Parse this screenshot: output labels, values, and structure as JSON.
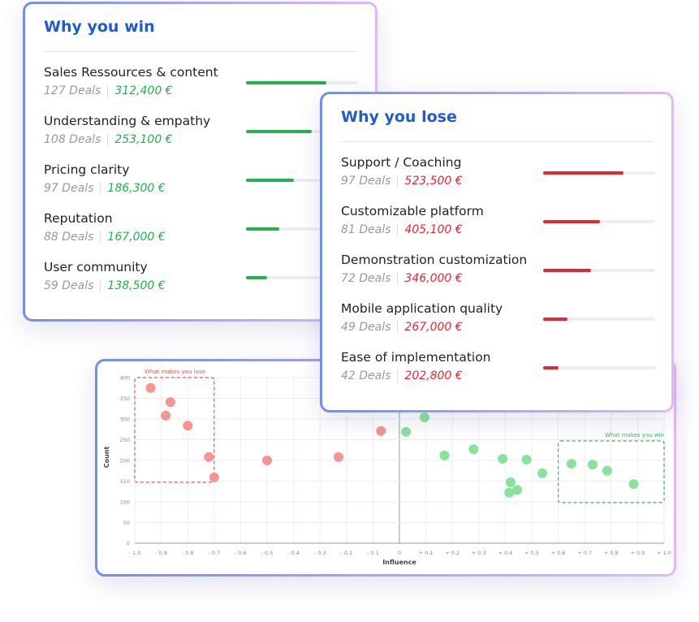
{
  "cards": [
    {
      "title": "Why you win",
      "color": "#22b14c",
      "items": [
        {
          "label": "Sales Ressources & content",
          "deals": "127 Deals",
          "amount": "312,400 €",
          "progress": 72
        },
        {
          "label": "Understanding & empathy",
          "deals": "108 Deals",
          "amount": "253,100 €",
          "progress": 59
        },
        {
          "label": "Pricing clarity",
          "deals": "97 Deals",
          "amount": "186,300 €",
          "progress": 43
        },
        {
          "label": "Reputation",
          "deals": "88 Deals",
          "amount": "167,000 €",
          "progress": 30
        },
        {
          "label": "User community",
          "deals": "59 Deals",
          "amount": "138,500 €",
          "progress": 19
        }
      ]
    },
    {
      "title": "Why you lose",
      "color": "#e8262f",
      "items": [
        {
          "label": "Support / Coaching",
          "deals": "97 Deals",
          "amount": "523,500 €",
          "progress": 72
        },
        {
          "label": "Customizable platform",
          "deals": "81 Deals",
          "amount": "405,100 €",
          "progress": 51
        },
        {
          "label": "Demonstration customization",
          "deals": "72 Deals",
          "amount": "346,000 €",
          "progress": 43
        },
        {
          "label": "Mobile application quality",
          "deals": "49 Deals",
          "amount": "267,000 €",
          "progress": 22
        },
        {
          "label": "Ease of implementation",
          "deals": "42 Deals",
          "amount": "202,800 €",
          "progress": 14
        }
      ]
    }
  ],
  "chart_data": {
    "type": "scatter",
    "x_label": "Influence",
    "y_label": "Count",
    "xlim": [
      -1,
      1
    ],
    "ylim": [
      0,
      400
    ],
    "xticks": [
      {
        "value": -1,
        "label": "- 1.0"
      },
      {
        "value": -0.9,
        "label": "- 0.9"
      },
      {
        "value": -0.8,
        "label": "- 0.8"
      },
      {
        "value": -0.7,
        "label": "- 0.7"
      },
      {
        "value": -0.6,
        "label": "- 0.6"
      },
      {
        "value": -0.5,
        "label": "- 0.5"
      },
      {
        "value": -0.4,
        "label": "- 0.4"
      },
      {
        "value": -0.3,
        "label": "- 0.3"
      },
      {
        "value": -0.2,
        "label": "- 0.2"
      },
      {
        "value": -0.1,
        "label": "- 0.1"
      },
      0,
      {
        "value": 0.1,
        "label": "+ 0.1"
      },
      {
        "value": 0.2,
        "label": "+ 0.2"
      },
      {
        "value": 0.3,
        "label": "+ 0.3"
      },
      {
        "value": 0.4,
        "label": "+ 0.4"
      },
      {
        "value": 0.5,
        "label": "+ 0.5"
      },
      {
        "value": 0.6,
        "label": "+ 0.6"
      },
      {
        "value": 0.7,
        "label": "+ 0.7"
      },
      {
        "value": 0.8,
        "label": "+ 0.8"
      },
      {
        "value": 0.9,
        "label": "+ 0.9"
      },
      {
        "value": 1,
        "label": "+ 1.0"
      }
    ],
    "yticks": [
      0,
      50,
      100,
      150,
      200,
      250,
      300,
      350,
      400
    ],
    "grid": true,
    "series": [
      {
        "color": "#f4958f",
        "x": [
          -0.94,
          -0.865,
          -0.883,
          -0.8,
          -0.72,
          -0.7,
          -0.5,
          -0.23,
          -0.07
        ],
        "values": [
          375,
          341,
          308,
          284,
          208,
          159,
          200,
          208,
          271
        ]
      },
      {
        "color": "#86e39a",
        "x": [
          0.025,
          0.095,
          0.17,
          0.28,
          0.39,
          0.42,
          0.415,
          0.445,
          0.48,
          0.54,
          0.65,
          0.73,
          0.785,
          0.885
        ],
        "values": [
          269,
          304,
          212,
          227,
          204,
          147,
          122,
          129,
          202,
          169,
          192,
          190,
          175,
          143
        ]
      }
    ],
    "annotations": [
      {
        "text": "What makes you lose",
        "color": "#e8555a",
        "x": [
          -1,
          -0.7
        ],
        "y": [
          147,
          400
        ]
      },
      {
        "text": "What makes you win",
        "color": "#3bb55a",
        "x": [
          0.6,
          1
        ],
        "y": [
          98,
          247
        ]
      }
    ]
  }
}
